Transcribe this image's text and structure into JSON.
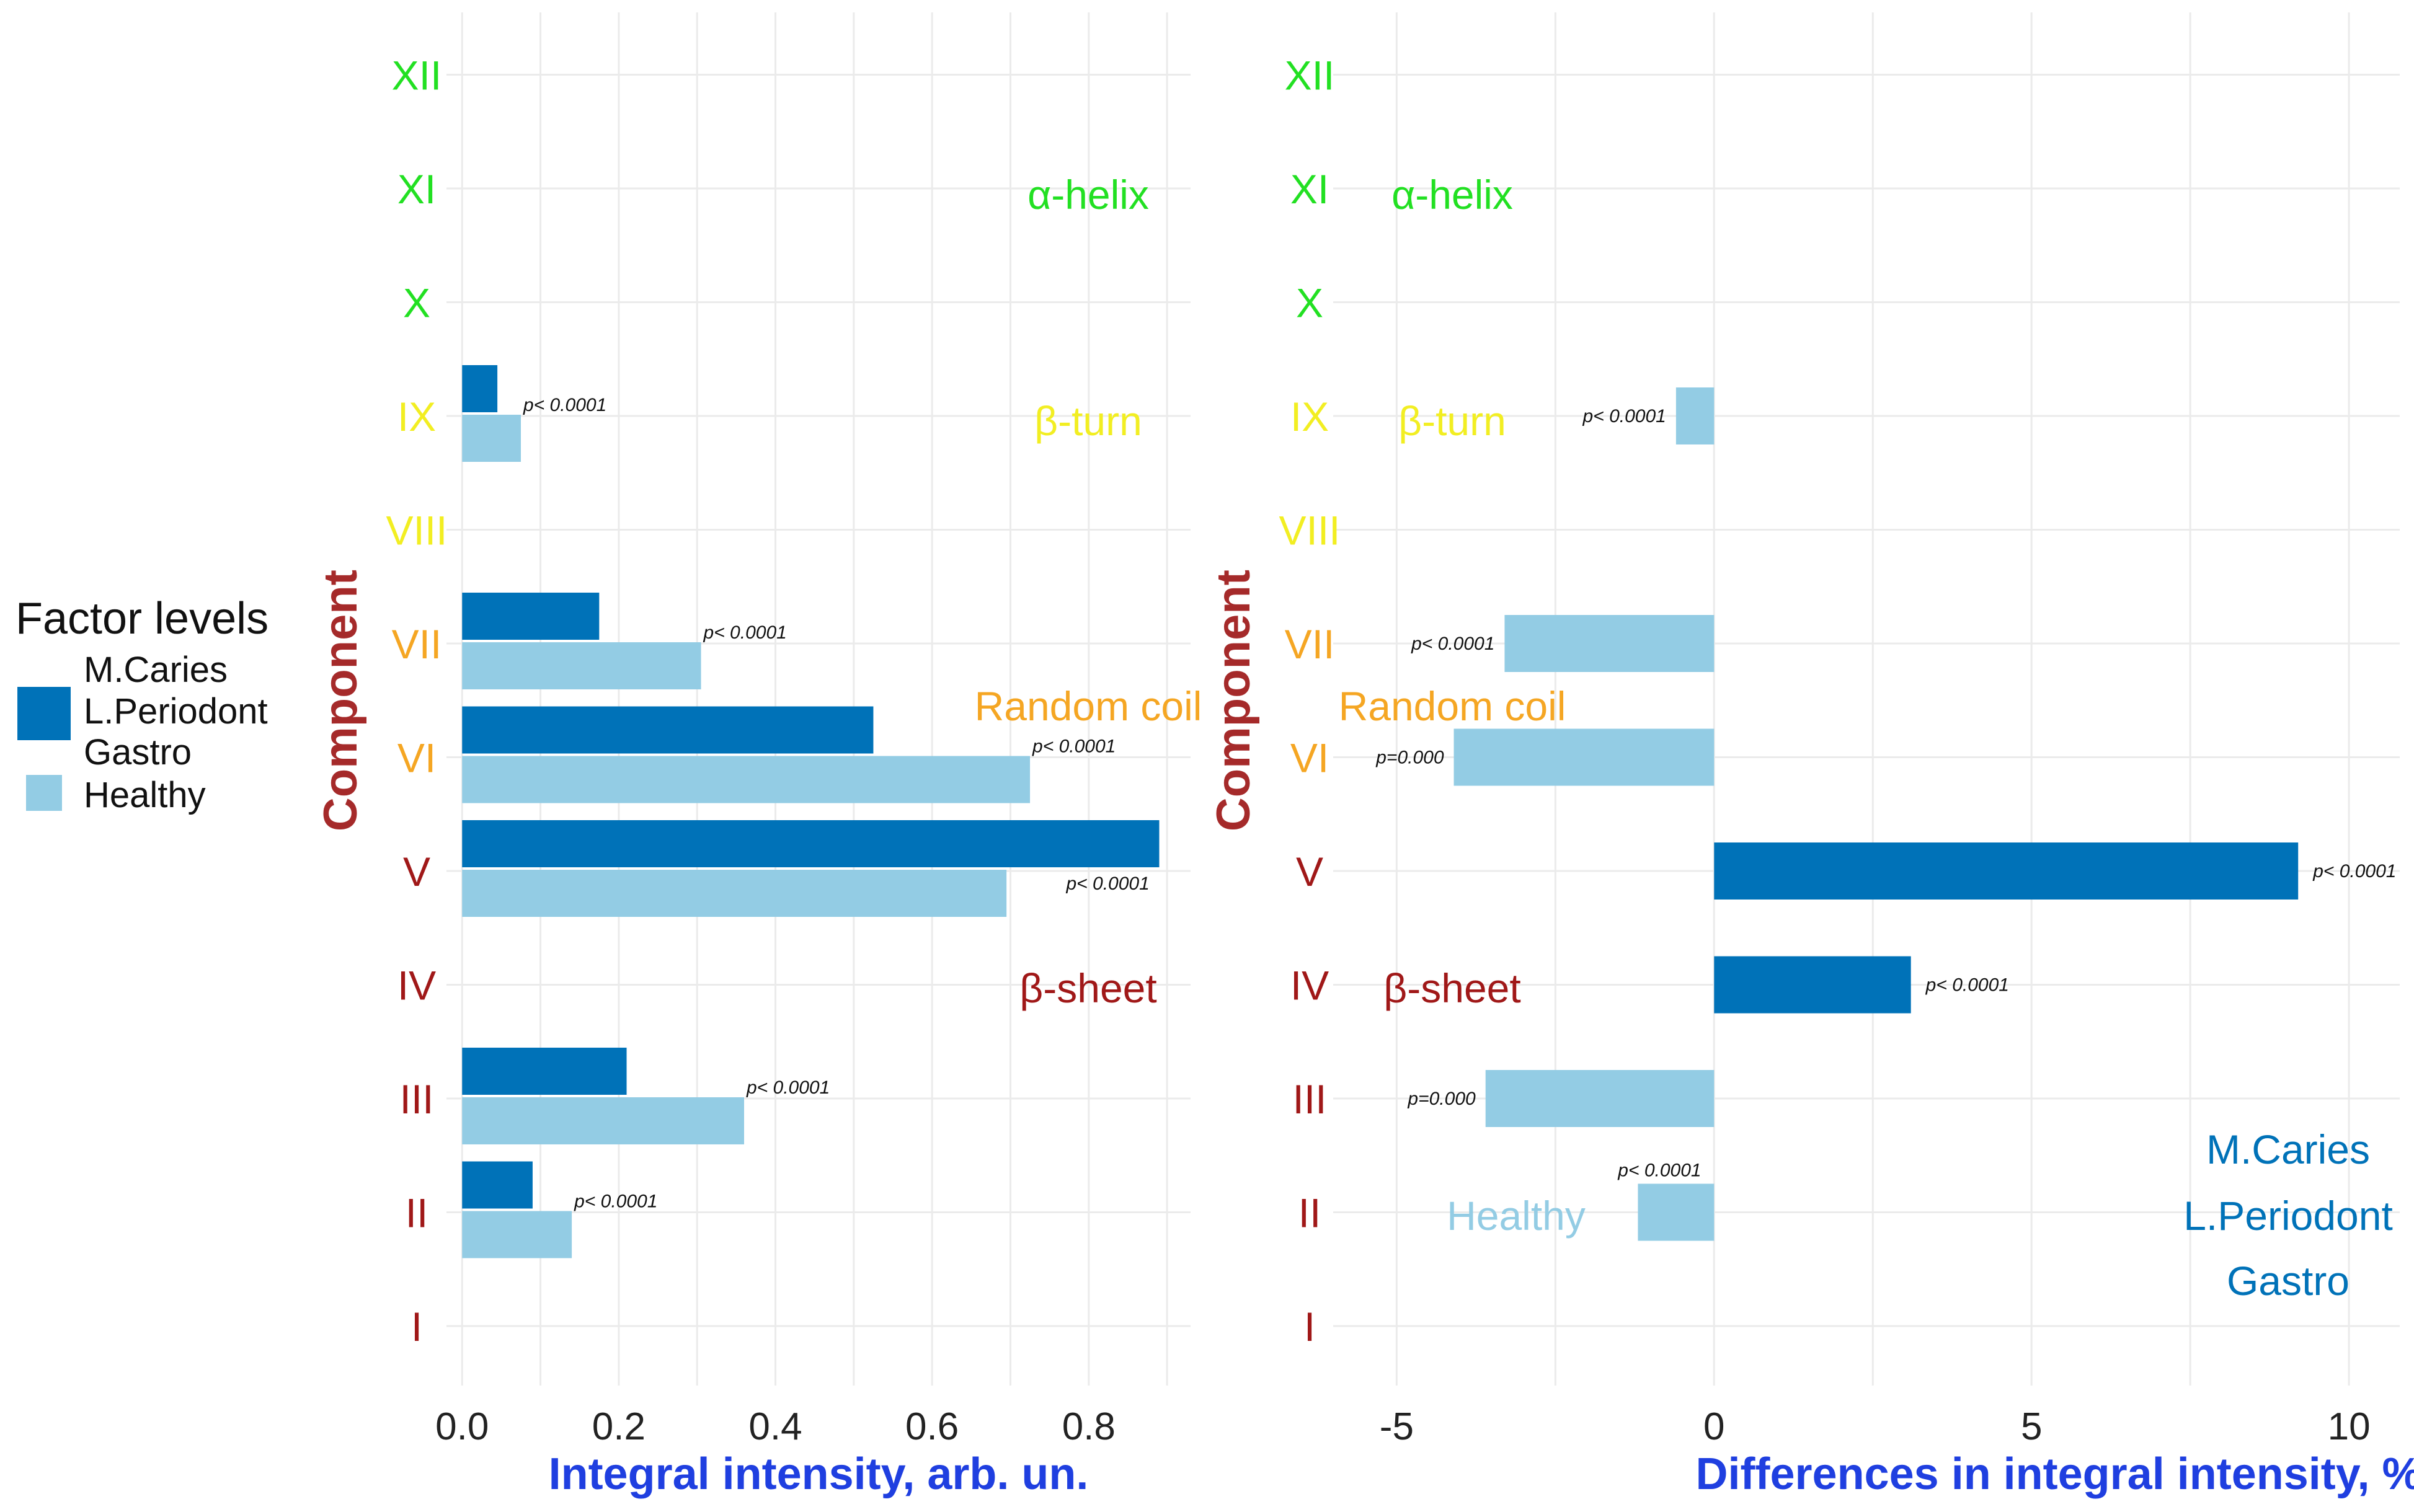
{
  "chart_data": [
    {
      "type": "bar",
      "orientation": "horizontal",
      "xlabel": "Integral intensity, arb. un.",
      "ylabel": "Component",
      "xlim": [
        -0.02,
        0.93
      ],
      "xticks": [
        "0.0",
        "0.2",
        "0.4",
        "0.6",
        "0.8"
      ],
      "xtick_values": [
        0.0,
        0.2,
        0.4,
        0.6,
        0.8
      ],
      "grid": true,
      "categories": [
        "I",
        "II",
        "III",
        "IV",
        "V",
        "VI",
        "VII",
        "VIII",
        "IX",
        "X",
        "XI",
        "XII"
      ],
      "series": [
        {
          "name": "M.Caries L.Periodont Gastro",
          "color": "#0072b8",
          "values": [
            null,
            0.09,
            0.21,
            null,
            0.89,
            0.525,
            0.175,
            null,
            0.045,
            null,
            null,
            null
          ]
        },
        {
          "name": "Healthy",
          "color": "#93cce4",
          "values": [
            null,
            0.14,
            0.36,
            null,
            0.695,
            0.725,
            0.305,
            null,
            0.075,
            null,
            null,
            null
          ]
        }
      ],
      "pvalues": [
        {
          "category": "II",
          "text": "p< 0.0001"
        },
        {
          "category": "III",
          "text": "p< 0.0001"
        },
        {
          "category": "V",
          "text": "p< 0.0001"
        },
        {
          "category": "VI",
          "text": "p< 0.0001"
        },
        {
          "category": "VII",
          "text": "p< 0.0001"
        },
        {
          "category": "IX",
          "text": "p< 0.0001"
        }
      ],
      "regions": [
        {
          "label": "α-helix",
          "color": "#22e022"
        },
        {
          "label": "β-turn",
          "color": "#f2ee22"
        },
        {
          "label": "Random coil",
          "color": "#f5a623"
        },
        {
          "label": "β-sheet",
          "color": "#a01818"
        }
      ]
    },
    {
      "type": "bar",
      "orientation": "horizontal",
      "xlabel": "Differences in integral intensity, %",
      "ylabel": "Component",
      "xlim": [
        -6,
        10.8
      ],
      "xticks": [
        "-5",
        "0",
        "5",
        "10"
      ],
      "xtick_values": [
        -5,
        0,
        5,
        10
      ],
      "grid": true,
      "categories": [
        "I",
        "II",
        "III",
        "IV",
        "V",
        "VI",
        "VII",
        "VIII",
        "IX",
        "X",
        "XI",
        "XII"
      ],
      "values": [
        null,
        -1.2,
        -3.6,
        3.1,
        9.2,
        -4.1,
        -3.3,
        null,
        -0.6,
        null,
        null,
        null
      ],
      "pvalues": [
        {
          "category": "II",
          "text": "p< 0.0001"
        },
        {
          "category": "III",
          "text": "p=0.000"
        },
        {
          "category": "IV",
          "text": "p< 0.0001"
        },
        {
          "category": "V",
          "text": "p< 0.0001"
        },
        {
          "category": "VI",
          "text": "p=0.000"
        },
        {
          "category": "VII",
          "text": "p< 0.0001"
        },
        {
          "category": "IX",
          "text": "p< 0.0001"
        }
      ],
      "annotations": {
        "negative": "Healthy",
        "positive": [
          "M.Caries",
          "L.Periodont",
          "Gastro"
        ]
      }
    }
  ],
  "category_colors": {
    "I": "#a01818",
    "II": "#a01818",
    "III": "#a01818",
    "IV": "#a01818",
    "V": "#a01818",
    "VI": "#f5a623",
    "VII": "#f5a623",
    "VIII": "#f2ee22",
    "IX": "#f2ee22",
    "X": "#22e022",
    "XI": "#22e022",
    "XII": "#22e022"
  },
  "legend": {
    "title": "Factor levels",
    "items": [
      {
        "lines": [
          "M.Caries",
          "L.Periodont",
          "Gastro"
        ],
        "color": "#0072b8"
      },
      {
        "lines": [
          "Healthy"
        ],
        "color": "#93cce4"
      }
    ]
  }
}
